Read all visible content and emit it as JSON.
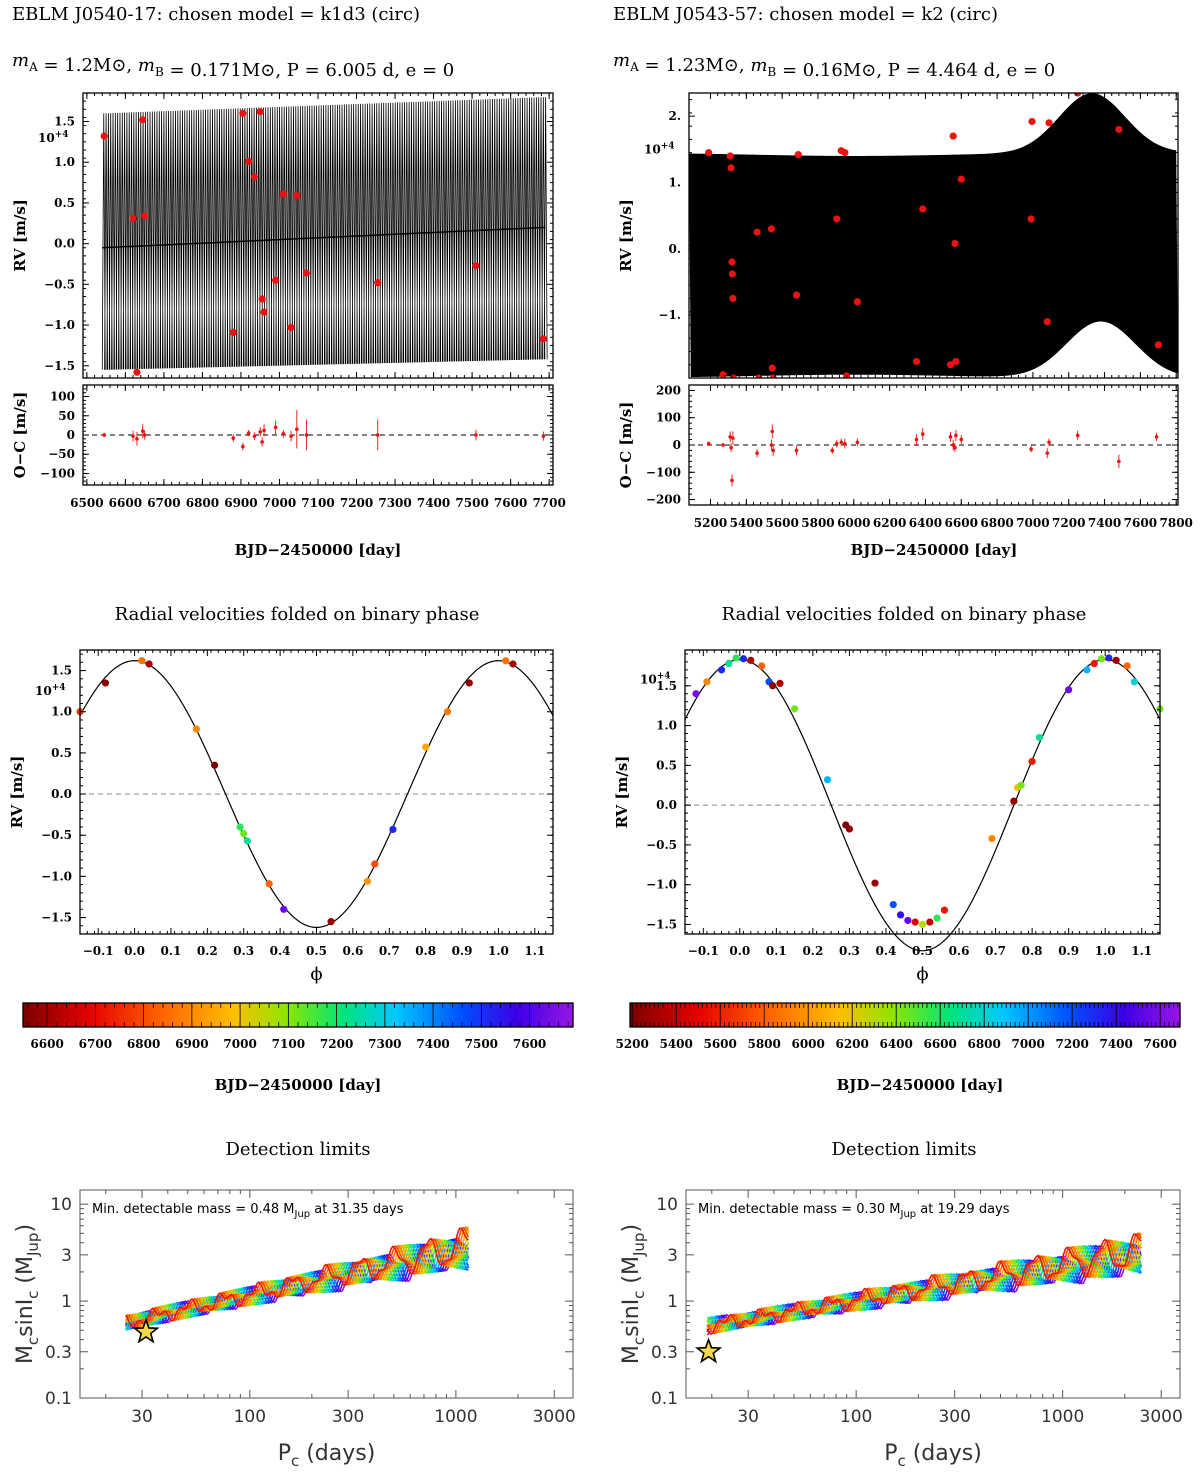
{
  "colors": {
    "data_point": "#ee1111",
    "model": "#000000",
    "zero_line": "#888888",
    "star_fill": "#f2d84a"
  },
  "panels": [
    {
      "id": "left",
      "header": {
        "title": "EBLM J0540-17: chosen model = k1d3 (circ)",
        "params": "mA = 1.2M⊙, mB = 0.171M⊙, P = 6.005 d, e = 0"
      },
      "rv": {
        "ylabel": "RV [m/s]",
        "exp_label": "10+4",
        "ylim": [
          -1.65,
          1.85
        ],
        "xlim": [
          6490,
          7710
        ],
        "yticks": [
          -1.5,
          -1.0,
          -0.5,
          0.0,
          0.5,
          1.0,
          1.5
        ],
        "ytick_labels": [
          "−1.5",
          "−1.0",
          "−0.5",
          "0.0",
          "0.5",
          "1.0",
          "1.5"
        ],
        "model": {
          "type": "sinusoid",
          "K": 1.62,
          "period": 6.005,
          "trend_start": -0.05,
          "trend_end": 0.2,
          "band_lo": [
            -1.55,
            -1.42
          ],
          "band_hi": [
            1.6,
            1.8
          ]
        },
        "points": [
          [
            6545,
            1.32
          ],
          [
            6620,
            0.31
          ],
          [
            6630,
            -1.58
          ],
          [
            6645,
            1.52
          ],
          [
            6650,
            0.34
          ],
          [
            6880,
            -1.09
          ],
          [
            6905,
            1.6
          ],
          [
            6920,
            1.01
          ],
          [
            6935,
            0.82
          ],
          [
            6950,
            1.62
          ],
          [
            6955,
            -0.68
          ],
          [
            6960,
            -0.84
          ],
          [
            6990,
            -0.45
          ],
          [
            7010,
            0.61
          ],
          [
            7030,
            -1.03
          ],
          [
            7045,
            0.59
          ],
          [
            7070,
            -0.36
          ],
          [
            7255,
            -0.48
          ],
          [
            7510,
            -0.27
          ],
          [
            7685,
            -1.17
          ]
        ]
      },
      "oc": {
        "ylabel": "O−C [m/s]",
        "ylim": [
          -130,
          130
        ],
        "yticks": [
          -100,
          -50,
          0,
          50,
          100
        ],
        "ytick_labels": [
          "−100",
          "−50",
          "0",
          "50",
          "100"
        ],
        "points": [
          [
            6545,
            0,
            6
          ],
          [
            6620,
            -3,
            14
          ],
          [
            6630,
            -10,
            18
          ],
          [
            6645,
            10,
            18
          ],
          [
            6650,
            0,
            12
          ],
          [
            6880,
            -8,
            10
          ],
          [
            6905,
            -30,
            10
          ],
          [
            6920,
            5,
            8
          ],
          [
            6935,
            -3,
            10
          ],
          [
            6950,
            8,
            12
          ],
          [
            6955,
            -18,
            12
          ],
          [
            6960,
            12,
            16
          ],
          [
            6990,
            20,
            18
          ],
          [
            7010,
            3,
            10
          ],
          [
            7030,
            -3,
            14
          ],
          [
            7045,
            15,
            50
          ],
          [
            7070,
            0,
            40
          ],
          [
            7255,
            0,
            40
          ],
          [
            7510,
            0,
            14
          ],
          [
            7685,
            -3,
            12
          ]
        ]
      },
      "xticks": [
        6500,
        6600,
        6700,
        6800,
        6900,
        7000,
        7100,
        7200,
        7300,
        7400,
        7500,
        7600,
        7700
      ],
      "xlabel": "BJD−2450000 [day]",
      "phase": {
        "title": "Radial velocities folded on binary phase",
        "xlabel": "ϕ",
        "ylabel": "RV [m/s]",
        "exp_label": "10+4",
        "K": 1.62,
        "ylim": [
          -1.7,
          1.75
        ],
        "xlim": [
          -0.15,
          1.15
        ],
        "yticks": [
          -1.5,
          -1.0,
          -0.5,
          0.0,
          0.5,
          1.0,
          1.5
        ],
        "ytick_labels": [
          "−1.5",
          "−1.0",
          "−0.5",
          "0.0",
          "0.5",
          "1.0",
          "1.5"
        ],
        "xticks": [
          -0.1,
          0.0,
          0.1,
          0.2,
          0.3,
          0.4,
          0.5,
          0.6,
          0.7,
          0.8,
          0.9,
          1.0,
          1.1
        ],
        "xtick_labels": [
          "−0.1",
          "0.0",
          "0.1",
          "0.2",
          "0.3",
          "0.4",
          "0.5",
          "0.6",
          "0.7",
          "0.8",
          "0.9",
          "1.0",
          "1.1"
        ],
        "points": [
          [
            -0.15,
            1.0,
            0.2
          ],
          [
            -0.08,
            1.35,
            0.02
          ],
          [
            0.02,
            1.62,
            0.27
          ],
          [
            0.04,
            1.58,
            0.05
          ],
          [
            0.17,
            0.79,
            0.3
          ],
          [
            0.22,
            0.35,
            0.0
          ],
          [
            0.29,
            -0.4,
            0.55
          ],
          [
            0.3,
            -0.48,
            0.5
          ],
          [
            0.31,
            -0.57,
            0.6
          ],
          [
            0.37,
            -1.09,
            0.25
          ],
          [
            0.41,
            -1.4,
            0.95
          ],
          [
            0.54,
            -1.55,
            0.03
          ],
          [
            0.64,
            -1.06,
            0.32
          ],
          [
            0.66,
            -0.85,
            0.22
          ],
          [
            0.71,
            -0.43,
            0.85
          ],
          [
            0.8,
            0.57,
            0.35
          ],
          [
            0.86,
            1.0,
            0.28
          ],
          [
            0.92,
            1.35,
            0.02
          ],
          [
            1.02,
            1.62,
            0.27
          ],
          [
            1.04,
            1.58,
            0.05
          ]
        ]
      },
      "colorbar": {
        "min": 6550,
        "max": 7690,
        "ticks": [
          6600,
          6700,
          6800,
          6900,
          7000,
          7100,
          7200,
          7300,
          7400,
          7500,
          7600
        ],
        "label": "BJD−2450000 [day]"
      },
      "dl": {
        "title": "Detection limits",
        "annotation": "Min. detectable mass = 0.48 MJup at 31.35 days",
        "xlabel": "Pc (days)",
        "ylabel": "Mc sinIc (MJup)",
        "xlim": [
          15,
          3700
        ],
        "ylim": [
          0.1,
          14
        ],
        "xticks": [
          30,
          100,
          300,
          1000,
          3000
        ],
        "xtick_labels": [
          "30",
          "100",
          "300",
          "1000",
          "3000"
        ],
        "yticks": [
          0.1,
          0.3,
          1,
          3,
          10
        ],
        "ytick_labels": [
          "0.1",
          "0.3",
          "1",
          "3",
          "10"
        ],
        "min_mass": 0.48,
        "min_period": 31.35,
        "curve_pmin": 25,
        "curve_pmax": 1150,
        "curve_m0": 0.6,
        "curve_m1": 3.5
      },
      "layout_key": "L"
    },
    {
      "id": "right",
      "header": {
        "title": "EBLM J0543-57: chosen model = k2 (circ)",
        "params": "mA = 1.23M⊙, mB = 0.16M⊙, P = 4.464 d, e = 0"
      },
      "rv": {
        "ylabel": "RV [m/s]",
        "exp_label": "10+4",
        "ylim": [
          -1.95,
          2.35
        ],
        "xlim": [
          5080,
          7810
        ],
        "yticks": [
          -1.0,
          0.0,
          1.0,
          2.0
        ],
        "ytick_labels": [
          "−1.",
          "0.",
          "1.",
          "2."
        ],
        "model": {
          "type": "band"
        },
        "points": [
          [
            5190,
            1.45
          ],
          [
            5270,
            -1.9
          ],
          [
            5310,
            1.4
          ],
          [
            5315,
            1.22
          ],
          [
            5320,
            -0.2
          ],
          [
            5322,
            -0.38
          ],
          [
            5325,
            -0.75
          ],
          [
            5327,
            -1.95
          ],
          [
            5460,
            0.25
          ],
          [
            5470,
            -1.95
          ],
          [
            5540,
            0.3
          ],
          [
            5545,
            -1.8
          ],
          [
            5550,
            -1.95
          ],
          [
            5680,
            -0.7
          ],
          [
            5690,
            1.42
          ],
          [
            5905,
            0.45
          ],
          [
            5930,
            1.48
          ],
          [
            5950,
            1.45
          ],
          [
            5960,
            -1.92
          ],
          [
            6020,
            -0.8
          ],
          [
            6350,
            -1.7
          ],
          [
            6385,
            0.6
          ],
          [
            6540,
            -1.75
          ],
          [
            6555,
            1.7
          ],
          [
            6565,
            0.08
          ],
          [
            6570,
            -1.7
          ],
          [
            6600,
            1.05
          ],
          [
            6990,
            0.45
          ],
          [
            6995,
            1.92
          ],
          [
            7080,
            -1.1
          ],
          [
            7090,
            1.9
          ],
          [
            7250,
            2.35
          ],
          [
            7480,
            1.8
          ],
          [
            7700,
            -1.45
          ]
        ]
      },
      "oc": {
        "ylabel": "O−C [m/s]",
        "ylim": [
          -220,
          220
        ],
        "yticks": [
          -200,
          -100,
          0,
          100,
          200
        ],
        "ytick_labels": [
          "−200",
          "−100",
          "0",
          "100",
          "200"
        ],
        "points": [
          [
            5190,
            5,
            8
          ],
          [
            5270,
            0,
            8
          ],
          [
            5310,
            30,
            20
          ],
          [
            5315,
            -10,
            16
          ],
          [
            5320,
            -130,
            22
          ],
          [
            5325,
            25,
            25
          ],
          [
            5460,
            -30,
            16
          ],
          [
            5540,
            0,
            20
          ],
          [
            5545,
            50,
            25
          ],
          [
            5550,
            -20,
            20
          ],
          [
            5680,
            -20,
            18
          ],
          [
            5880,
            -20,
            12
          ],
          [
            5905,
            5,
            14
          ],
          [
            5930,
            10,
            14
          ],
          [
            5950,
            5,
            18
          ],
          [
            6020,
            10,
            14
          ],
          [
            6350,
            20,
            20
          ],
          [
            6385,
            40,
            22
          ],
          [
            6540,
            30,
            18
          ],
          [
            6555,
            0,
            20
          ],
          [
            6565,
            -10,
            16
          ],
          [
            6570,
            35,
            20
          ],
          [
            6600,
            20,
            16
          ],
          [
            6990,
            -15,
            12
          ],
          [
            7080,
            -30,
            18
          ],
          [
            7090,
            10,
            14
          ],
          [
            7250,
            35,
            18
          ],
          [
            7480,
            -60,
            25
          ],
          [
            7690,
            30,
            15
          ]
        ]
      },
      "xticks": [
        5200,
        5400,
        5600,
        5800,
        6000,
        6200,
        6400,
        6600,
        6800,
        7000,
        7200,
        7400,
        7600,
        7800
      ],
      "xlabel": "BJD−2450000 [day]",
      "phase": {
        "title": "Radial velocities folded on binary phase",
        "xlabel": "ϕ",
        "ylabel": "RV [m/s]",
        "exp_label": "10+4",
        "K": 1.83,
        "ylim": [
          -1.62,
          1.95
        ],
        "xlim": [
          -0.15,
          1.15
        ],
        "yticks": [
          -1.5,
          -1.0,
          -0.5,
          0.0,
          0.5,
          1.0,
          1.5
        ],
        "ytick_labels": [
          "−1.5",
          "−1.0",
          "−0.5",
          "0.0",
          "0.5",
          "1.0",
          "1.5"
        ],
        "xticks": [
          -0.1,
          0.0,
          0.1,
          0.2,
          0.3,
          0.4,
          0.5,
          0.6,
          0.7,
          0.8,
          0.9,
          1.0,
          1.1
        ],
        "xtick_labels": [
          "−0.1",
          "0.0",
          "0.1",
          "0.2",
          "0.3",
          "0.4",
          "0.5",
          "0.6",
          "0.7",
          "0.8",
          "0.9",
          "1.0",
          "1.1"
        ],
        "points": [
          [
            -0.12,
            1.4,
            0.97
          ],
          [
            -0.09,
            1.55,
            0.3
          ],
          [
            -0.05,
            1.7,
            0.85
          ],
          [
            -0.03,
            1.78,
            0.6
          ],
          [
            -0.01,
            1.85,
            0.55
          ],
          [
            0.01,
            1.84,
            0.85
          ],
          [
            0.03,
            1.82,
            0.05
          ],
          [
            0.06,
            1.75,
            0.25
          ],
          [
            0.08,
            1.55,
            0.8
          ],
          [
            0.09,
            1.5,
            0.02
          ],
          [
            0.11,
            1.53,
            0.05
          ],
          [
            0.15,
            1.21,
            0.5
          ],
          [
            0.24,
            0.32,
            0.7
          ],
          [
            0.29,
            -0.25,
            0.0
          ],
          [
            0.3,
            -0.3,
            0.02
          ],
          [
            0.37,
            -0.98,
            0.03
          ],
          [
            0.42,
            -1.25,
            0.8
          ],
          [
            0.44,
            -1.38,
            0.88
          ],
          [
            0.46,
            -1.45,
            0.95
          ],
          [
            0.48,
            -1.47,
            0.1
          ],
          [
            0.5,
            -1.5,
            0.45
          ],
          [
            0.52,
            -1.47,
            0.08
          ],
          [
            0.54,
            -1.42,
            0.55
          ],
          [
            0.56,
            -1.32,
            0.15
          ],
          [
            0.69,
            -0.42,
            0.3
          ],
          [
            0.75,
            0.05,
            0.02
          ],
          [
            0.76,
            0.22,
            0.4
          ],
          [
            0.77,
            0.25,
            0.5
          ],
          [
            0.8,
            0.55,
            0.15
          ],
          [
            0.82,
            0.85,
            0.6
          ],
          [
            0.9,
            1.45,
            0.95
          ],
          [
            0.95,
            1.7,
            0.7
          ],
          [
            0.97,
            1.78,
            0.15
          ],
          [
            0.99,
            1.84,
            0.5
          ],
          [
            1.01,
            1.85,
            0.85
          ],
          [
            1.03,
            1.82,
            0.03
          ],
          [
            1.06,
            1.75,
            0.25
          ],
          [
            1.08,
            1.55,
            0.65
          ],
          [
            1.15,
            1.21,
            0.5
          ]
        ]
      },
      "colorbar": {
        "min": 5190,
        "max": 7690,
        "ticks": [
          5200,
          5400,
          5600,
          5800,
          6000,
          6200,
          6400,
          6600,
          6800,
          7000,
          7200,
          7400,
          7600
        ],
        "label": "BJD−2450000 [day]"
      },
      "dl": {
        "title": "Detection limits",
        "annotation": "Min. detectable mass = 0.30 MJup at 19.29 days",
        "xlabel": "Pc (days)",
        "ylabel": "Mc sinIc (MJup)",
        "xlim": [
          15,
          3700
        ],
        "ylim": [
          0.1,
          14
        ],
        "xticks": [
          30,
          100,
          300,
          1000,
          3000
        ],
        "xtick_labels": [
          "30",
          "100",
          "300",
          "1000",
          "3000"
        ],
        "yticks": [
          0.1,
          0.3,
          1,
          3,
          10
        ],
        "ytick_labels": [
          "0.1",
          "0.3",
          "1",
          "3",
          "10"
        ],
        "min_mass": 0.3,
        "min_period": 19.29,
        "curve_pmin": 19,
        "curve_pmax": 2400,
        "curve_m0": 0.55,
        "curve_m1": 3.1
      },
      "layout_key": "R"
    }
  ]
}
